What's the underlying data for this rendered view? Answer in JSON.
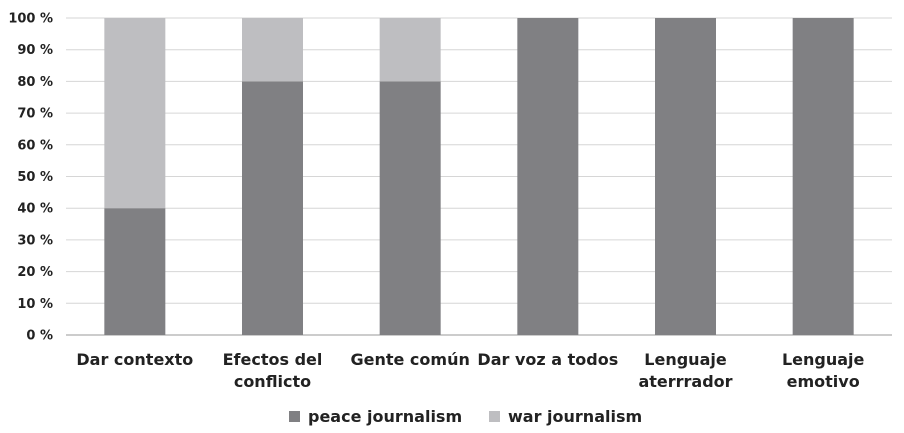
{
  "chart_data": {
    "type": "bar",
    "stacked": true,
    "percent": true,
    "categories": [
      [
        "Dar contexto"
      ],
      [
        "Efectos del",
        "conflicto"
      ],
      [
        "Gente común"
      ],
      [
        "Dar voz a todos"
      ],
      [
        "Lenguaje",
        "aterrrador"
      ],
      [
        "Lenguaje",
        "emotivo"
      ]
    ],
    "series": [
      {
        "name": "peace journalism",
        "color": "#808083",
        "values": [
          40,
          80,
          80,
          100,
          100,
          100
        ]
      },
      {
        "name": "war journalism",
        "color": "#bebec1",
        "values": [
          60,
          20,
          20,
          0,
          0,
          0
        ]
      }
    ],
    "y_ticks": [
      "0 %",
      "10 %",
      "20 %",
      "30 %",
      "40 %",
      "50 %",
      "60 %",
      "70 %",
      "80 %",
      "90 %",
      "100 %"
    ],
    "ylim": [
      0,
      100
    ],
    "grid": true,
    "legend_position": "bottom"
  }
}
